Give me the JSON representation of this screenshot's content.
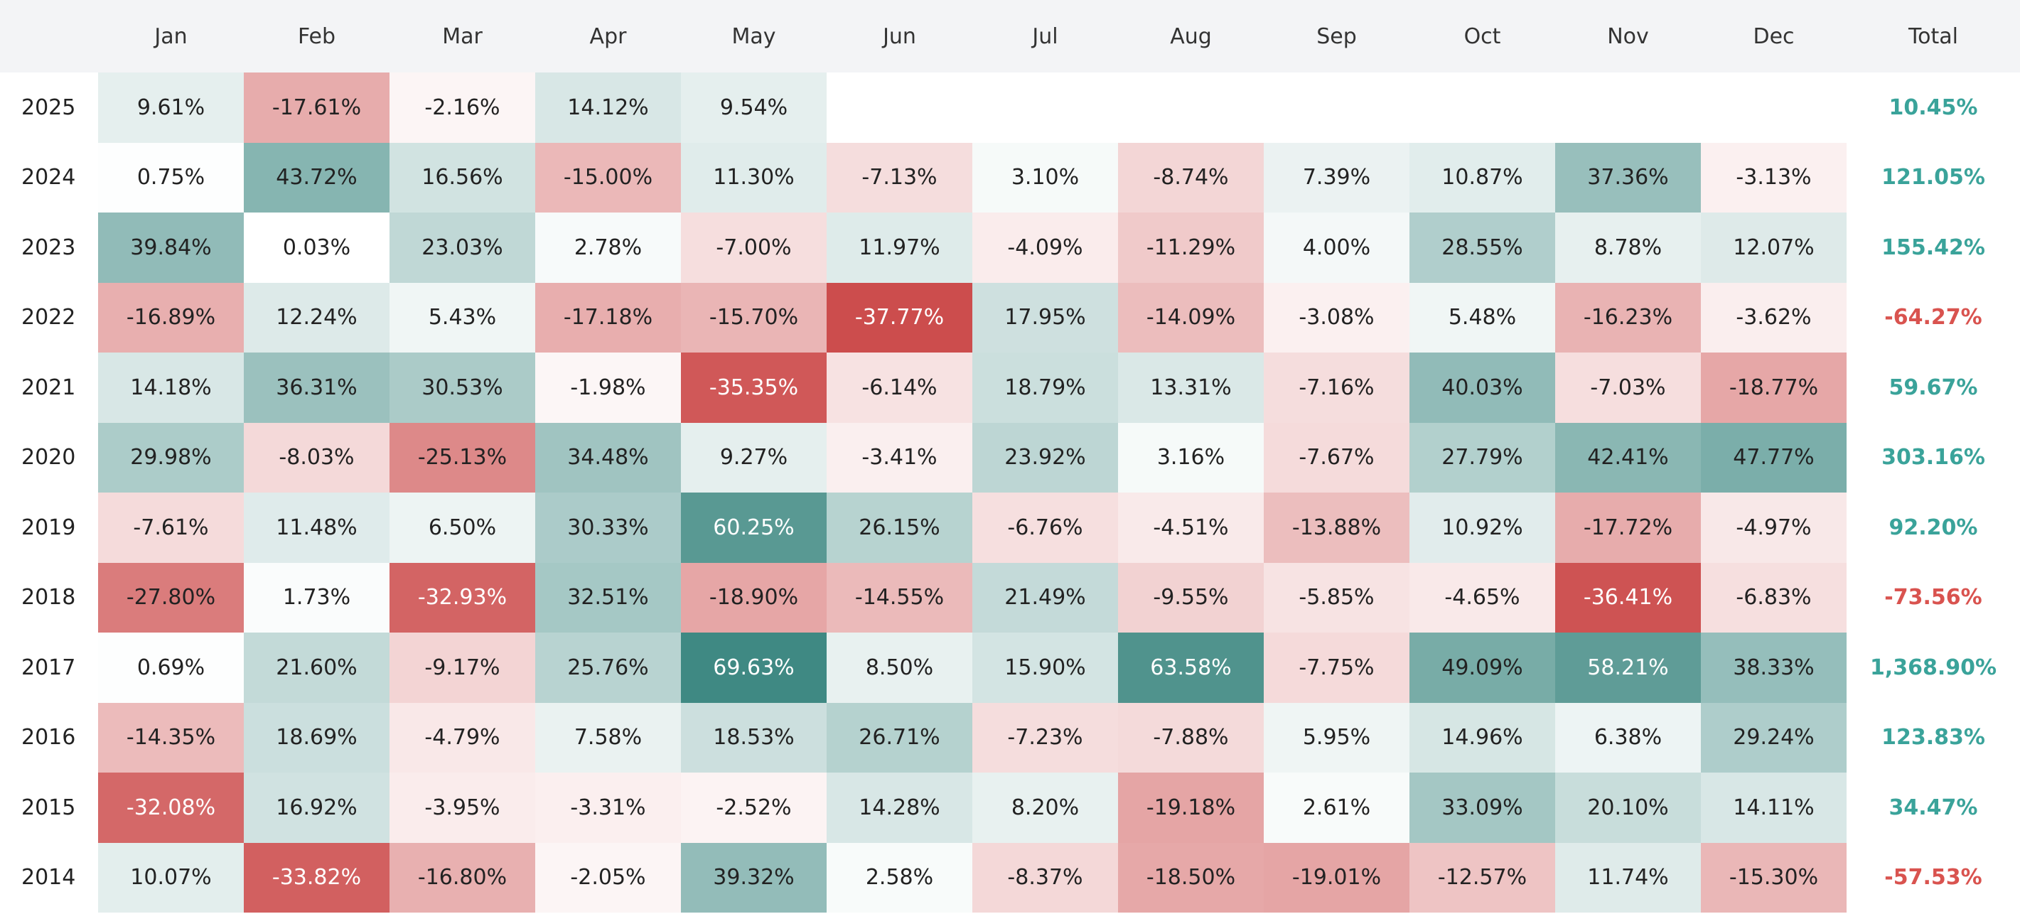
{
  "header": {
    "months": [
      "Jan",
      "Feb",
      "Mar",
      "Apr",
      "May",
      "Jun",
      "Jul",
      "Aug",
      "Sep",
      "Oct",
      "Nov",
      "Dec"
    ],
    "total": "Total"
  },
  "rows": [
    {
      "year": "2025",
      "cells": [
        "9.61%",
        "-17.61%",
        "-2.16%",
        "14.12%",
        "9.54%",
        null,
        null,
        null,
        null,
        null,
        null,
        null
      ],
      "total": "10.45%"
    },
    {
      "year": "2024",
      "cells": [
        "0.75%",
        "43.72%",
        "16.56%",
        "-15.00%",
        "11.30%",
        "-7.13%",
        "3.10%",
        "-8.74%",
        "7.39%",
        "10.87%",
        "37.36%",
        "-3.13%"
      ],
      "total": "121.05%"
    },
    {
      "year": "2023",
      "cells": [
        "39.84%",
        "0.03%",
        "23.03%",
        "2.78%",
        "-7.00%",
        "11.97%",
        "-4.09%",
        "-11.29%",
        "4.00%",
        "28.55%",
        "8.78%",
        "12.07%"
      ],
      "total": "155.42%"
    },
    {
      "year": "2022",
      "cells": [
        "-16.89%",
        "12.24%",
        "5.43%",
        "-17.18%",
        "-15.70%",
        "-37.77%",
        "17.95%",
        "-14.09%",
        "-3.08%",
        "5.48%",
        "-16.23%",
        "-3.62%"
      ],
      "total": "-64.27%"
    },
    {
      "year": "2021",
      "cells": [
        "14.18%",
        "36.31%",
        "30.53%",
        "-1.98%",
        "-35.35%",
        "-6.14%",
        "18.79%",
        "13.31%",
        "-7.16%",
        "40.03%",
        "-7.03%",
        "-18.77%"
      ],
      "total": "59.67%"
    },
    {
      "year": "2020",
      "cells": [
        "29.98%",
        "-8.03%",
        "-25.13%",
        "34.48%",
        "9.27%",
        "-3.41%",
        "23.92%",
        "3.16%",
        "-7.67%",
        "27.79%",
        "42.41%",
        "47.77%"
      ],
      "total": "303.16%"
    },
    {
      "year": "2019",
      "cells": [
        "-7.61%",
        "11.48%",
        "6.50%",
        "30.33%",
        "60.25%",
        "26.15%",
        "-6.76%",
        "-4.51%",
        "-13.88%",
        "10.92%",
        "-17.72%",
        "-4.97%"
      ],
      "total": "92.20%"
    },
    {
      "year": "2018",
      "cells": [
        "-27.80%",
        "1.73%",
        "-32.93%",
        "32.51%",
        "-18.90%",
        "-14.55%",
        "21.49%",
        "-9.55%",
        "-5.85%",
        "-4.65%",
        "-36.41%",
        "-6.83%"
      ],
      "total": "-73.56%"
    },
    {
      "year": "2017",
      "cells": [
        "0.69%",
        "21.60%",
        "-9.17%",
        "25.76%",
        "69.63%",
        "8.50%",
        "15.90%",
        "63.58%",
        "-7.75%",
        "49.09%",
        "58.21%",
        "38.33%"
      ],
      "total": "1,368.90%"
    },
    {
      "year": "2016",
      "cells": [
        "-14.35%",
        "18.69%",
        "-4.79%",
        "7.58%",
        "18.53%",
        "26.71%",
        "-7.23%",
        "-7.88%",
        "5.95%",
        "14.96%",
        "6.38%",
        "29.24%"
      ],
      "total": "123.83%"
    },
    {
      "year": "2015",
      "cells": [
        "-32.08%",
        "16.92%",
        "-3.95%",
        "-3.31%",
        "-2.52%",
        "14.28%",
        "8.20%",
        "-19.18%",
        "2.61%",
        "33.09%",
        "20.10%",
        "14.11%"
      ],
      "total": "34.47%"
    },
    {
      "year": "2014",
      "cells": [
        "10.07%",
        "-33.82%",
        "-16.80%",
        "-2.05%",
        "39.32%",
        "2.58%",
        "-8.37%",
        "-18.50%",
        "-19.01%",
        "-12.57%",
        "11.74%",
        "-15.30%"
      ],
      "total": "-57.53%"
    }
  ]
}
